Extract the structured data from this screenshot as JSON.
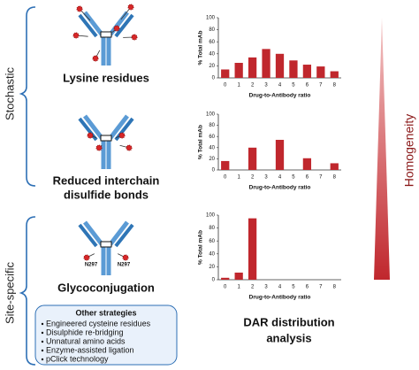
{
  "groups": [
    "Stochastic",
    "Site-specific"
  ],
  "methods": [
    {
      "lines": [
        "Lysine residues"
      ]
    },
    {
      "lines": [
        "Reduced interchain",
        "disulfide bonds"
      ]
    },
    {
      "lines": [
        "Glycoconjugation"
      ],
      "sites": [
        "N297",
        "N297"
      ]
    }
  ],
  "other_strategies": {
    "title": "Other strategies",
    "items": [
      "Engineered cysteine residues",
      "Disulphide re-bridging",
      "Unnatural amino acids",
      "Enzyme-assisted ligation",
      "pClick technology"
    ]
  },
  "analysis_label": [
    "DAR distribution",
    "analysis"
  ],
  "gradient_label": "Homogeneity",
  "chart_data": [
    {
      "type": "bar",
      "categories": [
        "0",
        "1",
        "2",
        "3",
        "4",
        "5",
        "6",
        "7",
        "8"
      ],
      "values": [
        14,
        25,
        34,
        48,
        40,
        29,
        22,
        19,
        11
      ],
      "color": "#c0272d",
      "ylim": [
        0,
        100
      ],
      "yticks": [
        0,
        20,
        40,
        60,
        80,
        100
      ],
      "xlabel": "Drug-to-Antibody ratio",
      "ylabel": "% Total mAb"
    },
    {
      "type": "bar",
      "categories": [
        "0",
        "1",
        "2",
        "3",
        "4",
        "5",
        "6",
        "7",
        "8"
      ],
      "values": [
        16,
        0,
        40,
        0,
        54,
        0,
        21,
        0,
        12
      ],
      "color": "#c0272d",
      "ylim": [
        0,
        100
      ],
      "yticks": [
        0,
        20,
        40,
        60,
        80,
        100
      ],
      "xlabel": "Drug-to-Antibody ratio",
      "ylabel": "% Total mAb"
    },
    {
      "type": "bar",
      "categories": [
        "0",
        "1",
        "2",
        "3",
        "4",
        "5",
        "6",
        "7",
        "8"
      ],
      "values": [
        3,
        11,
        95,
        0,
        0,
        0,
        0,
        0,
        0
      ],
      "color": "#c0272d",
      "ylim": [
        0,
        100
      ],
      "yticks": [
        0,
        20,
        40,
        60,
        80,
        100
      ],
      "xlabel": "Drug-to-Antibody ratio",
      "ylabel": "% Total mAb"
    }
  ]
}
